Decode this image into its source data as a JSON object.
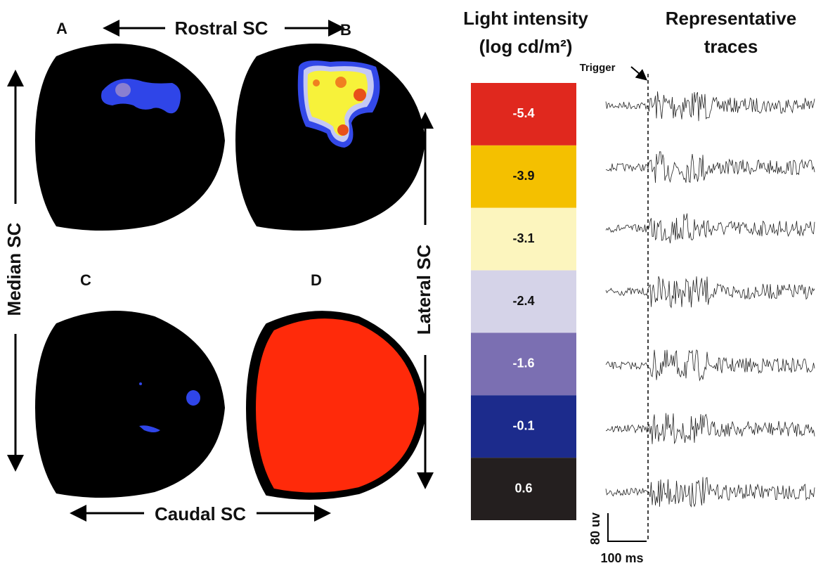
{
  "panels": {
    "a": "A",
    "b": "B",
    "c": "C",
    "d": "D"
  },
  "axes": {
    "rostral": "Rostral SC",
    "caudal": "Caudal SC",
    "median": "Median SC",
    "lateral": "Lateral SC"
  },
  "scale": {
    "title": [
      "Light intensity",
      "(log cd/m²)"
    ],
    "levels": [
      {
        "label": "-5.4",
        "color": "#e0281e"
      },
      {
        "label": "-3.9",
        "color": "#f4c000"
      },
      {
        "label": "-3.1",
        "color": "#fcf5be"
      },
      {
        "label": "-2.4",
        "color": "#d5d3e8"
      },
      {
        "label": "-1.6",
        "color": "#7b6fb2"
      },
      {
        "label": "-0.1",
        "color": "#1c2b8c"
      },
      {
        "label": "0.6",
        "color": "#241f1f"
      }
    ]
  },
  "traces": {
    "title": [
      "Representative",
      "traces"
    ],
    "trigger": "Trigger",
    "amplitude": "80 uv",
    "time": "100 ms"
  }
}
